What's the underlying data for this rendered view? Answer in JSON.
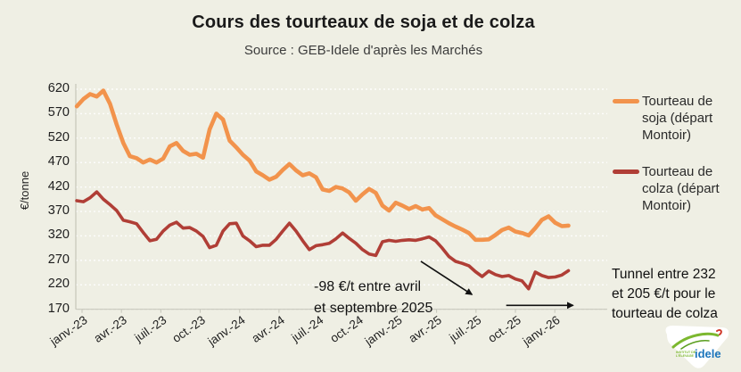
{
  "header": {
    "title": "Cours des tourteaux de soja et de colza",
    "subtitle": "Source : GEB-Idele d'après les Marchés"
  },
  "chart_data": {
    "type": "line",
    "title": "Cours des tourteaux de soja et de colza",
    "source": "Source : GEB-Idele d'après les Marchés",
    "ylabel": "€/tonne",
    "ylim": [
      170,
      620
    ],
    "yticks": [
      620,
      570,
      520,
      470,
      420,
      370,
      320,
      270,
      220,
      170
    ],
    "grid": "horizontal dashed white lines",
    "legend_position": "right",
    "xtick_labels": [
      "janv.-23",
      "avr.-23",
      "juil.-23",
      "oct.-23",
      "janv.-24",
      "avr.-24",
      "juil.-24",
      "oct.-24",
      "janv.-25",
      "avr.-25",
      "juil.-25",
      "oct.-25",
      "janv.-26"
    ],
    "xtick_month_positions": [
      0,
      3,
      6,
      9,
      12,
      15,
      18,
      21,
      24,
      27,
      30,
      33,
      36
    ],
    "x_unit": "months since janv.-23 (weekly price series, approx. fortnightly sampling)",
    "x_start_month": -0.4,
    "x_step_months": 0.506,
    "series": [
      {
        "name": "Tourteau de soja (départ Montoir)",
        "color": "#F2934C",
        "values": [
          585,
          600,
          610,
          605,
          617,
          590,
          548,
          510,
          483,
          479,
          470,
          476,
          470,
          478,
          503,
          510,
          494,
          486,
          488,
          480,
          538,
          570,
          558,
          515,
          501,
          486,
          474,
          452,
          444,
          435,
          441,
          455,
          467,
          454,
          444,
          448,
          440,
          415,
          412,
          420,
          417,
          409,
          392,
          405,
          416,
          408,
          382,
          372,
          388,
          382,
          375,
          381,
          374,
          377,
          362,
          354,
          346,
          339,
          333,
          326,
          312,
          312,
          313,
          322,
          332,
          337,
          329,
          326,
          321,
          336,
          353,
          360,
          347,
          340,
          341
        ]
      },
      {
        "name": "Tourteau de colza (départ Montoir)",
        "color": "#B03E36",
        "values": [
          392,
          390,
          398,
          410,
          395,
          384,
          372,
          352,
          349,
          345,
          327,
          310,
          313,
          330,
          342,
          348,
          336,
          337,
          330,
          319,
          296,
          301,
          330,
          345,
          346,
          320,
          310,
          298,
          301,
          301,
          313,
          330,
          346,
          330,
          310,
          292,
          300,
          302,
          305,
          314,
          326,
          315,
          305,
          292,
          283,
          280,
          308,
          311,
          309,
          311,
          312,
          311,
          314,
          318,
          310,
          295,
          278,
          268,
          264,
          259,
          247,
          237,
          248,
          241,
          237,
          239,
          232,
          228,
          212,
          246,
          239,
          235,
          236,
          240,
          249
        ]
      }
    ],
    "annotations": [
      {
        "id": "drop",
        "lines": [
          "-98 €/t entre avril",
          "et septembre 2025"
        ],
        "arrow": {
          "from_month": 25.8,
          "from_value": 268,
          "to_month": 29.7,
          "to_value": 200
        }
      },
      {
        "id": "tunnel",
        "lines": [
          "Tunnel entre 232",
          "et 205 €/t pour le",
          "tourteau de colza"
        ],
        "arrow": {
          "from_month": 32.3,
          "from_value": 178,
          "to_month": 37.4,
          "to_value": 178
        }
      }
    ]
  },
  "logo": {
    "brand": "idele",
    "tagline_line1": "INSTITUT DE",
    "tagline_line2": "L'ÉLEVAGE"
  },
  "colors": {
    "background": "#EFEFE4",
    "soja": "#F2934C",
    "colza": "#B03E36",
    "grid": "#FFFFFF",
    "axis": "#C6C6BA",
    "text": "#1F1F1F",
    "arrow": "#111111",
    "logo_blue": "#1C75BC",
    "logo_green": "#7CB82F"
  }
}
